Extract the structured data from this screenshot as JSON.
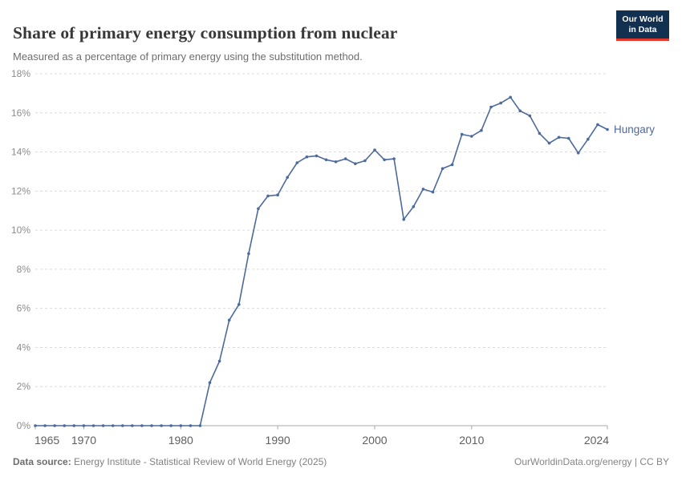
{
  "header": {
    "title": "Share of primary energy consumption from nuclear",
    "subtitle": "Measured as a percentage of primary energy using the substitution method.",
    "logo": {
      "line1": "Our World",
      "line2": "in Data"
    }
  },
  "colors": {
    "series": "#4C6A9C",
    "gridline": "#dcdcdc",
    "axis_line": "#a8a8a8",
    "y_tick_label": "#8c8c8c",
    "x_tick_label": "#606060",
    "logo_bg": "#12304f",
    "logo_accent": "#e0372b",
    "title_text": "#383838"
  },
  "chart_data": {
    "type": "line",
    "title": "Share of primary energy consumption from nuclear",
    "subtitle": "Measured as a percentage of primary energy using the substitution method.",
    "xlabel": "",
    "ylabel": "",
    "xlim": [
      1965,
      2024
    ],
    "ylim": [
      0,
      18
    ],
    "grid": "horizontal-dashed",
    "legend_position": "end-of-line-label",
    "x_ticks": [
      1965,
      1970,
      1980,
      1990,
      2000,
      2010,
      2024
    ],
    "y_ticks": [
      0,
      2,
      4,
      6,
      8,
      10,
      12,
      14,
      16,
      18
    ],
    "y_tick_suffix": "%",
    "series": [
      {
        "name": "Hungary",
        "color": "#4C6A9C",
        "x": [
          1965,
          1966,
          1967,
          1968,
          1969,
          1970,
          1971,
          1972,
          1973,
          1974,
          1975,
          1976,
          1977,
          1978,
          1979,
          1980,
          1981,
          1982,
          1983,
          1984,
          1985,
          1986,
          1987,
          1988,
          1989,
          1990,
          1991,
          1992,
          1993,
          1994,
          1995,
          1996,
          1997,
          1998,
          1999,
          2000,
          2001,
          2002,
          2003,
          2004,
          2005,
          2006,
          2007,
          2008,
          2009,
          2010,
          2011,
          2012,
          2013,
          2014,
          2015,
          2016,
          2017,
          2018,
          2019,
          2020,
          2021,
          2022,
          2023,
          2024
        ],
        "values": [
          0,
          0,
          0,
          0,
          0,
          0,
          0,
          0,
          0,
          0,
          0,
          0,
          0,
          0,
          0,
          0,
          0,
          0,
          2.2,
          3.3,
          5.4,
          6.2,
          8.8,
          11.1,
          11.75,
          11.8,
          12.7,
          13.45,
          13.75,
          13.8,
          13.6,
          13.5,
          13.65,
          13.4,
          13.55,
          14.1,
          13.6,
          13.65,
          10.55,
          11.2,
          12.1,
          11.95,
          13.15,
          13.35,
          14.9,
          14.8,
          15.1,
          16.3,
          16.5,
          16.8,
          16.1,
          15.85,
          14.95,
          14.45,
          14.75,
          14.7,
          13.95,
          14.65,
          15.4,
          15.15
        ]
      }
    ]
  },
  "footer": {
    "datasource_label": "Data source:",
    "datasource_text": "Energy Institute - Statistical Review of World Energy (2025)",
    "right_text": "OurWorldinData.org/energy | CC BY"
  }
}
